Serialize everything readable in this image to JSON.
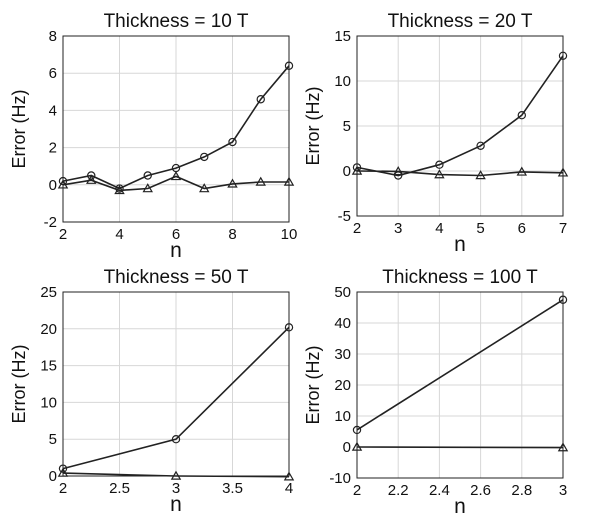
{
  "chart_data": [
    {
      "type": "line",
      "title": "Thickness = 10 T",
      "xlabel": "n",
      "ylabel": "Error (Hz)",
      "xlim": [
        2,
        10
      ],
      "ylim": [
        -2,
        8
      ],
      "xticks": [
        2,
        4,
        6,
        8,
        10
      ],
      "yticks": [
        -2,
        0,
        2,
        4,
        6,
        8
      ],
      "xticklabels": [
        "2",
        "4",
        "6",
        "8",
        "10"
      ],
      "yticklabels": [
        "-2",
        "0",
        "2",
        "4",
        "6",
        "8"
      ],
      "grid": true,
      "series": [
        {
          "marker": "circle",
          "x": [
            2,
            3,
            4,
            5,
            6,
            7,
            8,
            9,
            10
          ],
          "y": [
            0.2,
            0.5,
            -0.2,
            0.5,
            0.9,
            1.5,
            2.3,
            4.6,
            6.4
          ]
        },
        {
          "marker": "triangle",
          "x": [
            2,
            3,
            4,
            5,
            6,
            7,
            8,
            9,
            10
          ],
          "y": [
            0.0,
            0.25,
            -0.3,
            -0.2,
            0.45,
            -0.2,
            0.05,
            0.15,
            0.15
          ]
        }
      ]
    },
    {
      "type": "line",
      "title": "Thickness = 20 T",
      "xlabel": "n",
      "ylabel": "Error (Hz)",
      "xlim": [
        2,
        7
      ],
      "ylim": [
        -5,
        15
      ],
      "xticks": [
        2,
        3,
        4,
        5,
        6,
        7
      ],
      "yticks": [
        -5,
        0,
        5,
        10,
        15
      ],
      "xticklabels": [
        "2",
        "3",
        "4",
        "5",
        "6",
        "7"
      ],
      "yticklabels": [
        "-5",
        "0",
        "5",
        "10",
        "15"
      ],
      "grid": true,
      "series": [
        {
          "marker": "circle",
          "x": [
            2,
            3,
            4,
            5,
            6,
            7
          ],
          "y": [
            0.4,
            -0.5,
            0.7,
            2.8,
            6.2,
            12.8
          ]
        },
        {
          "marker": "triangle",
          "x": [
            2,
            3,
            4,
            5,
            6,
            7
          ],
          "y": [
            0.0,
            -0.05,
            -0.4,
            -0.5,
            -0.1,
            -0.2
          ]
        }
      ]
    },
    {
      "type": "line",
      "title": "Thickness = 50 T",
      "xlabel": "n",
      "ylabel": "Error (Hz)",
      "xlim": [
        2,
        4
      ],
      "ylim": [
        0,
        25
      ],
      "xticks": [
        2,
        2.5,
        3,
        3.5,
        4
      ],
      "yticks": [
        0,
        5,
        10,
        15,
        20,
        25
      ],
      "xticklabels": [
        "2",
        "2.5",
        "3",
        "3.5",
        "4"
      ],
      "yticklabels": [
        "0",
        "5",
        "10",
        "15",
        "20",
        "25"
      ],
      "grid": true,
      "series": [
        {
          "marker": "circle",
          "x": [
            2,
            3,
            4
          ],
          "y": [
            1.0,
            5.0,
            20.2
          ]
        },
        {
          "marker": "triangle",
          "x": [
            2,
            3,
            4
          ],
          "y": [
            0.4,
            0.0,
            -0.1
          ]
        }
      ]
    },
    {
      "type": "line",
      "title": "Thickness = 100 T",
      "xlabel": "n",
      "ylabel": "Error (Hz)",
      "xlim": [
        2,
        3
      ],
      "ylim": [
        -10,
        50
      ],
      "xticks": [
        2,
        2.2,
        2.4,
        2.6,
        2.8,
        3
      ],
      "yticks": [
        -10,
        0,
        10,
        20,
        30,
        40,
        50
      ],
      "xticklabels": [
        "2",
        "2.2",
        "2.4",
        "2.6",
        "2.8",
        "3"
      ],
      "yticklabels": [
        "-10",
        "0",
        "10",
        "20",
        "30",
        "40",
        "50"
      ],
      "grid": true,
      "series": [
        {
          "marker": "circle",
          "x": [
            2,
            3
          ],
          "y": [
            5.5,
            47.5
          ]
        },
        {
          "marker": "triangle",
          "x": [
            2,
            3
          ],
          "y": [
            0.0,
            -0.2
          ]
        }
      ]
    }
  ]
}
